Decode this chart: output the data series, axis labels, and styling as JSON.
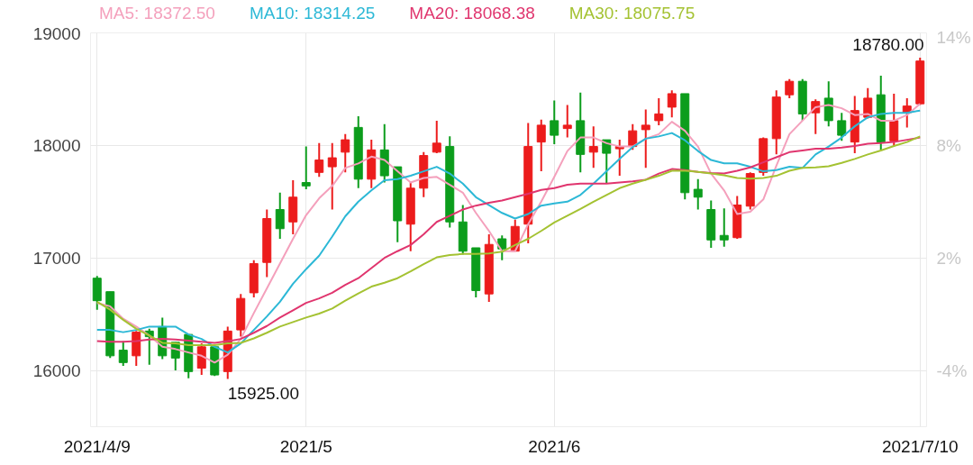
{
  "chart_data": {
    "type": "candlestick",
    "categories": [
      "2021/4/9",
      null,
      null,
      null,
      null,
      null,
      null,
      null,
      null,
      null,
      null,
      null,
      null,
      null,
      null,
      null,
      "2021/5",
      null,
      null,
      null,
      null,
      null,
      null,
      null,
      null,
      null,
      null,
      null,
      null,
      null,
      null,
      null,
      null,
      null,
      null,
      "2021/6",
      null,
      null,
      null,
      null,
      null,
      null,
      null,
      null,
      null,
      null,
      null,
      null,
      null,
      null,
      null,
      null,
      null,
      null,
      null,
      null,
      null,
      null,
      null,
      null,
      null,
      null,
      null,
      "2021/7/10"
    ],
    "ohlc": [
      [
        16820,
        16840,
        16540,
        16620
      ],
      [
        16700,
        16700,
        16110,
        16130
      ],
      [
        16180,
        16260,
        16040,
        16070
      ],
      [
        16130,
        16350,
        16040,
        16340
      ],
      [
        16350,
        16370,
        16050,
        16300
      ],
      [
        16390,
        16470,
        16100,
        16130
      ],
      [
        16250,
        16250,
        16000,
        16110
      ],
      [
        16320,
        16320,
        15930,
        15990
      ],
      [
        16020,
        16240,
        15960,
        16210
      ],
      [
        16210,
        16220,
        15950,
        15960
      ],
      [
        15990,
        16390,
        15925,
        16350
      ],
      [
        16360,
        16680,
        16300,
        16640
      ],
      [
        16690,
        16980,
        16650,
        16950
      ],
      [
        16960,
        17430,
        16830,
        17350
      ],
      [
        17430,
        17580,
        17170,
        17260
      ],
      [
        17320,
        17690,
        17210,
        17540
      ],
      [
        17670,
        17990,
        17610,
        17640
      ],
      [
        17760,
        18020,
        17720,
        17870
      ],
      [
        17810,
        18020,
        17430,
        17890
      ],
      [
        17940,
        18100,
        17760,
        18050
      ],
      [
        18160,
        18260,
        17620,
        17700
      ],
      [
        17700,
        18050,
        17620,
        17960
      ],
      [
        17960,
        18190,
        17670,
        17730
      ],
      [
        17810,
        17810,
        17140,
        17330
      ],
      [
        17300,
        17670,
        17060,
        17620
      ],
      [
        17620,
        17940,
        17540,
        17910
      ],
      [
        17940,
        18220,
        17930,
        18020
      ],
      [
        17990,
        18080,
        17270,
        17320
      ],
      [
        17320,
        17470,
        17030,
        17060
      ],
      [
        17090,
        17090,
        16650,
        16710
      ],
      [
        16680,
        17210,
        16610,
        17120
      ],
      [
        17170,
        17200,
        16980,
        17080
      ],
      [
        17060,
        17340,
        17060,
        17280
      ],
      [
        17300,
        18200,
        17130,
        17990
      ],
      [
        18030,
        18230,
        17770,
        18180
      ],
      [
        18220,
        18400,
        18010,
        18090
      ],
      [
        18150,
        18360,
        18070,
        18180
      ],
      [
        18220,
        18470,
        17760,
        17920
      ],
      [
        17940,
        18170,
        17800,
        17990
      ],
      [
        18050,
        18050,
        17660,
        17930
      ],
      [
        17970,
        18050,
        17730,
        17990
      ],
      [
        17990,
        18190,
        17960,
        18130
      ],
      [
        18140,
        18320,
        17800,
        18180
      ],
      [
        18220,
        18420,
        18180,
        18280
      ],
      [
        18340,
        18490,
        18250,
        18460
      ],
      [
        18460,
        18460,
        17520,
        17580
      ],
      [
        17610,
        17700,
        17430,
        17540
      ],
      [
        17430,
        17510,
        17090,
        17160
      ],
      [
        17200,
        17440,
        17100,
        17160
      ],
      [
        17180,
        17550,
        17170,
        17470
      ],
      [
        17460,
        17760,
        17430,
        17750
      ],
      [
        17760,
        18070,
        17730,
        18060
      ],
      [
        18060,
        18490,
        17920,
        18430
      ],
      [
        18450,
        18590,
        18420,
        18570
      ],
      [
        18570,
        18590,
        18220,
        18280
      ],
      [
        18290,
        18410,
        18100,
        18390
      ],
      [
        18420,
        18570,
        18170,
        18220
      ],
      [
        18220,
        18290,
        18040,
        18090
      ],
      [
        18030,
        18440,
        17930,
        18310
      ],
      [
        18250,
        18510,
        18240,
        18420
      ],
      [
        18450,
        18620,
        17960,
        18030
      ],
      [
        18040,
        18460,
        17990,
        18220
      ],
      [
        18290,
        18420,
        18160,
        18350
      ],
      [
        18370,
        18780,
        18360,
        18750
      ]
    ],
    "colors": [
      "#0c9d1c",
      "#0c9d1c",
      "#0c9d1c",
      "#ec1c1c",
      "#0c9d1c",
      "#0c9d1c",
      "#0c9d1c",
      "#0c9d1c",
      "#ec1c1c",
      "#0c9d1c",
      "#ec1c1c",
      "#ec1c1c",
      "#ec1c1c",
      "#ec1c1c",
      "#0c9d1c",
      "#ec1c1c",
      "#0c9d1c",
      "#ec1c1c",
      "#ec1c1c",
      "#ec1c1c",
      "#0c9d1c",
      "#ec1c1c",
      "#0c9d1c",
      "#0c9d1c",
      "#ec1c1c",
      "#ec1c1c",
      "#ec1c1c",
      "#0c9d1c",
      "#0c9d1c",
      "#0c9d1c",
      "#ec1c1c",
      "#0c9d1c",
      "#ec1c1c",
      "#ec1c1c",
      "#ec1c1c",
      "#0c9d1c",
      "#ec1c1c",
      "#0c9d1c",
      "#ec1c1c",
      "#0c9d1c",
      "#ec1c1c",
      "#ec1c1c",
      "#ec1c1c",
      "#ec1c1c",
      "#ec1c1c",
      "#0c9d1c",
      "#0c9d1c",
      "#0c9d1c",
      "#0c9d1c",
      "#ec1c1c",
      "#ec1c1c",
      "#ec1c1c",
      "#ec1c1c",
      "#ec1c1c",
      "#0c9d1c",
      "#ec1c1c",
      "#0c9d1c",
      "#0c9d1c",
      "#ec1c1c",
      "#ec1c1c",
      "#0c9d1c",
      "#ec1c1c",
      "#ec1c1c",
      "#ec1c1c"
    ],
    "series": [
      {
        "name": "MA5: 18372.50",
        "type": "line",
        "color": "#f4a0bc",
        "values": [
          16600,
          16570,
          16460,
          16390,
          16310,
          16210,
          16190,
          16160,
          16130,
          16070,
          16140,
          16280,
          16510,
          16730,
          16950,
          17170,
          17380,
          17530,
          17640,
          17800,
          17840,
          17900,
          17870,
          17770,
          17670,
          17710,
          17720,
          17650,
          17580,
          17400,
          17240,
          17060,
          17060,
          17300,
          17500,
          17720,
          17950,
          18070,
          18070,
          18020,
          17990,
          17990,
          18060,
          18100,
          18210,
          18130,
          17990,
          17750,
          17600,
          17390,
          17410,
          17520,
          17820,
          18100,
          18220,
          18340,
          18360,
          18330,
          18270,
          18280,
          18220,
          18220,
          18270,
          18370
        ]
      },
      {
        "name": "MA10: 18314.25",
        "type": "line",
        "color": "#2cb8d6",
        "values": [
          16360,
          16360,
          16340,
          16360,
          16390,
          16390,
          16390,
          16320,
          16280,
          16210,
          16160,
          16240,
          16360,
          16480,
          16610,
          16770,
          16900,
          17020,
          17190,
          17370,
          17500,
          17600,
          17690,
          17700,
          17730,
          17770,
          17810,
          17750,
          17660,
          17540,
          17470,
          17400,
          17350,
          17390,
          17465,
          17485,
          17500,
          17560,
          17660,
          17770,
          17880,
          17985,
          18060,
          18080,
          18110,
          18045,
          17950,
          17870,
          17840,
          17840,
          17810,
          17770,
          17780,
          17810,
          17800,
          17920,
          17990,
          18070,
          18170,
          18250,
          18280,
          18290,
          18290,
          18310
        ]
      },
      {
        "name": "MA20: 18068.38",
        "type": "line",
        "color": "#e0356e",
        "values": [
          16260,
          16255,
          16255,
          16260,
          16275,
          16280,
          16275,
          16265,
          16255,
          16245,
          16260,
          16280,
          16335,
          16395,
          16470,
          16535,
          16600,
          16640,
          16690,
          16760,
          16820,
          16910,
          17000,
          17060,
          17115,
          17210,
          17320,
          17375,
          17430,
          17465,
          17490,
          17510,
          17540,
          17570,
          17605,
          17620,
          17650,
          17660,
          17660,
          17660,
          17670,
          17680,
          17695,
          17750,
          17790,
          17780,
          17765,
          17755,
          17750,
          17775,
          17805,
          17850,
          17895,
          17940,
          17955,
          17970,
          17970,
          17980,
          17995,
          18015,
          18020,
          18030,
          18050,
          18070
        ]
      },
      {
        "name": "MA30: 18075.75",
        "type": "line",
        "color": "#a4c232",
        "values": [
          16610,
          16540,
          16450,
          16370,
          16310,
          16245,
          16240,
          16225,
          16225,
          16225,
          16240,
          16245,
          16285,
          16335,
          16390,
          16430,
          16470,
          16505,
          16550,
          16620,
          16685,
          16745,
          16780,
          16820,
          16880,
          16945,
          17005,
          17025,
          17035,
          17035,
          17040,
          17055,
          17115,
          17170,
          17240,
          17315,
          17375,
          17435,
          17500,
          17560,
          17620,
          17660,
          17695,
          17730,
          17775,
          17775,
          17765,
          17750,
          17735,
          17710,
          17705,
          17710,
          17730,
          17775,
          17800,
          17805,
          17815,
          17845,
          17880,
          17920,
          17955,
          17995,
          18030,
          18080
        ]
      }
    ],
    "ylim": [
      15500,
      19000
    ],
    "yticks": [
      16000,
      17000,
      18000,
      19000
    ],
    "y2lim": [
      -7,
      14
    ],
    "y2ticks": [
      {
        "value": -4,
        "label": "-4%"
      },
      {
        "value": 2,
        "label": "2%"
      },
      {
        "value": 8,
        "label": "8%"
      },
      {
        "value": 14,
        "label": "14%"
      }
    ],
    "grid": true,
    "legend": "top",
    "annotations": [
      {
        "text": "18780.00",
        "x": "2021/7/10",
        "y": 18780
      },
      "15925.00"
    ]
  }
}
